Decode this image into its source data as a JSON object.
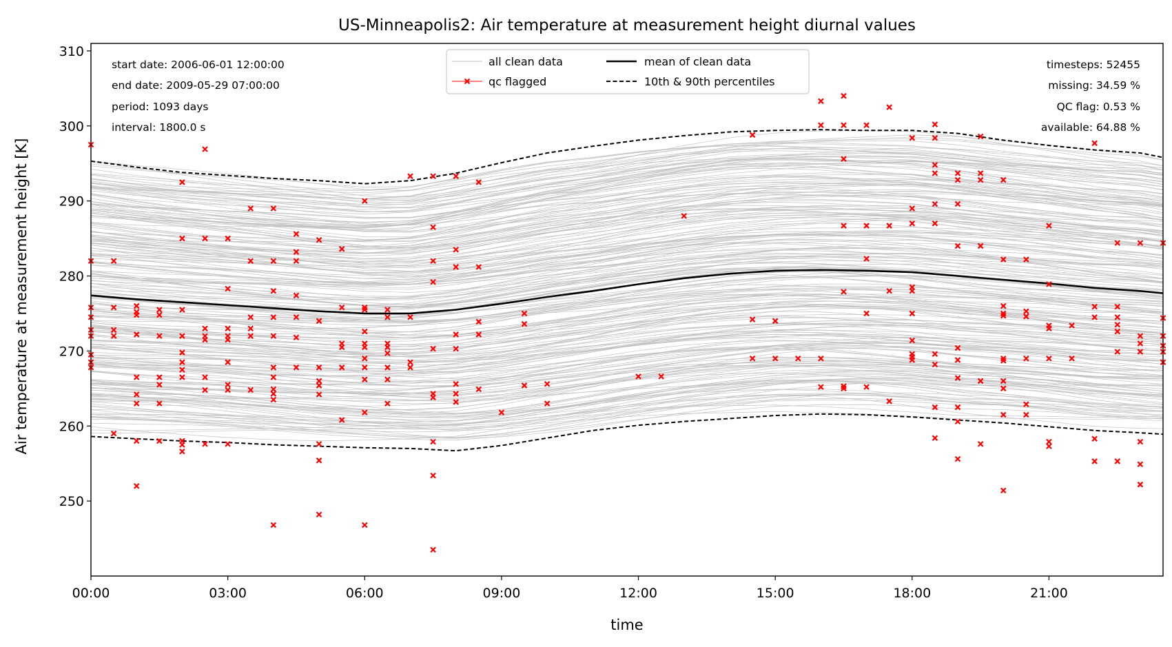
{
  "chart_data": {
    "type": "line",
    "title": "US-Minneapolis2: Air temperature at measurement height diurnal values",
    "xlabel": "time",
    "ylabel": "Air temperature at measurement height [K]",
    "xlim": [
      0,
      23.5
    ],
    "ylim": [
      240,
      311
    ],
    "x_ticks": [
      "00:00",
      "03:00",
      "06:00",
      "09:00",
      "12:00",
      "15:00",
      "18:00",
      "21:00"
    ],
    "y_ticks": [
      250,
      260,
      270,
      280,
      290,
      300,
      310
    ],
    "grid": false,
    "legend_position": "top-center",
    "legend": {
      "all_clean": "all clean data",
      "qc": "qc flagged",
      "mean": "mean of clean data",
      "percentiles": "10th & 90th percentiles"
    },
    "stats_left": [
      "start date: 2006-06-01 12:00:00",
      "end date: 2009-05-29 07:00:00",
      "period: 1093 days",
      "interval: 1800.0 s"
    ],
    "stats_right": [
      "timesteps: 52455",
      "missing: 34.59 %",
      "QC flag: 0.53 %",
      "available: 64.88 %"
    ],
    "colors": {
      "clean": "#bfbfbf",
      "qc": "#ff0000",
      "mean": "#000000"
    },
    "series": [
      {
        "name": "mean of clean data",
        "x": [
          0,
          1,
          2,
          3,
          4,
          5,
          6,
          7,
          8,
          9,
          10,
          11,
          12,
          13,
          14,
          15,
          16,
          17,
          18,
          19,
          20,
          21,
          22,
          23,
          23.5
        ],
        "values": [
          277.4,
          276.9,
          276.5,
          276.1,
          275.7,
          275.3,
          275.0,
          275.0,
          275.5,
          276.3,
          277.2,
          278.0,
          278.9,
          279.7,
          280.3,
          280.7,
          280.8,
          280.7,
          280.5,
          280.0,
          279.5,
          279.0,
          278.4,
          278.0,
          277.7
        ]
      },
      {
        "name": "10th & 90th percentiles",
        "x": [
          0,
          1,
          2,
          3,
          4,
          5,
          6,
          7,
          8,
          9,
          10,
          11,
          12,
          13,
          14,
          15,
          16,
          17,
          18,
          19,
          20,
          21,
          22,
          23,
          23.5
        ],
        "p90": [
          295.3,
          294.5,
          293.8,
          293.4,
          293.0,
          292.7,
          292.3,
          292.7,
          293.7,
          295.1,
          296.4,
          297.3,
          298.1,
          298.7,
          299.2,
          299.4,
          299.5,
          299.4,
          299.4,
          299.0,
          298.1,
          297.4,
          296.8,
          296.4,
          295.8
        ],
        "p10": [
          258.6,
          258.3,
          258.0,
          257.8,
          257.5,
          257.3,
          257.1,
          257.0,
          256.7,
          257.4,
          258.4,
          259.4,
          260.1,
          260.6,
          261.0,
          261.4,
          261.6,
          261.5,
          261.2,
          260.8,
          260.4,
          259.9,
          259.4,
          259.1,
          258.9
        ]
      },
      {
        "name": "qc flagged",
        "points": [
          [
            0,
            297.5
          ],
          [
            0,
            282
          ],
          [
            0.5,
            282
          ],
          [
            0,
            275.8
          ],
          [
            0.5,
            275.8
          ],
          [
            0,
            274.5
          ],
          [
            0,
            272.8
          ],
          [
            0.5,
            272.8
          ],
          [
            0,
            272
          ],
          [
            0.5,
            272
          ],
          [
            0,
            269.5
          ],
          [
            0,
            268.5
          ],
          [
            0,
            267.8
          ],
          [
            0.5,
            259
          ],
          [
            1,
            276
          ],
          [
            1.5,
            275.5
          ],
          [
            2,
            275.5
          ],
          [
            1,
            275.2
          ],
          [
            1,
            274.8
          ],
          [
            1.5,
            274.8
          ],
          [
            1,
            272.2
          ],
          [
            1.5,
            272
          ],
          [
            1,
            266.5
          ],
          [
            1.5,
            266.5
          ],
          [
            2,
            266.5
          ],
          [
            1,
            264.2
          ],
          [
            1,
            263
          ],
          [
            1.5,
            263
          ],
          [
            1.5,
            265.5
          ],
          [
            1,
            258
          ],
          [
            1.5,
            258
          ],
          [
            2,
            258
          ],
          [
            1,
            252
          ],
          [
            2,
            292.5
          ],
          [
            2,
            285
          ],
          [
            2.5,
            285
          ],
          [
            3,
            285
          ],
          [
            2.5,
            296.9
          ],
          [
            2,
            272
          ],
          [
            2.5,
            272
          ],
          [
            3,
            272
          ],
          [
            2,
            269.8
          ],
          [
            2,
            268.5
          ],
          [
            2,
            267.5
          ],
          [
            2.5,
            266.5
          ],
          [
            2,
            258
          ],
          [
            2,
            257.5
          ],
          [
            2,
            256.6
          ],
          [
            2.5,
            257.6
          ],
          [
            3,
            257.6
          ],
          [
            2.5,
            273
          ],
          [
            3,
            273
          ],
          [
            2.5,
            271.5
          ],
          [
            3,
            271.5
          ],
          [
            2.5,
            264.8
          ],
          [
            3,
            264.8
          ],
          [
            3,
            265.5
          ],
          [
            3,
            268.5
          ],
          [
            3,
            278.3
          ],
          [
            3.5,
            289
          ],
          [
            4,
            289
          ],
          [
            3.5,
            282
          ],
          [
            4,
            282
          ],
          [
            4.5,
            282
          ],
          [
            4.5,
            283.2
          ],
          [
            4.5,
            285.6
          ],
          [
            4,
            278
          ],
          [
            4.5,
            277.4
          ],
          [
            3.5,
            274.5
          ],
          [
            4,
            274.5
          ],
          [
            4.5,
            274.5
          ],
          [
            3.5,
            273
          ],
          [
            3.5,
            272
          ],
          [
            4,
            272
          ],
          [
            4.5,
            271.8
          ],
          [
            3.5,
            264.8
          ],
          [
            4,
            264.9
          ],
          [
            4,
            264.3
          ],
          [
            4,
            263.5
          ],
          [
            4,
            266.5
          ],
          [
            4,
            267.8
          ],
          [
            4.5,
            267.8
          ],
          [
            5,
            267.8
          ],
          [
            4,
            246.8
          ],
          [
            5,
            284.8
          ],
          [
            5,
            274
          ],
          [
            5,
            266
          ],
          [
            5,
            265.4
          ],
          [
            5,
            264.2
          ],
          [
            5,
            257.6
          ],
          [
            5,
            255.4
          ],
          [
            5,
            248.2
          ],
          [
            5.5,
            283.6
          ],
          [
            5.5,
            275.8
          ],
          [
            6,
            275.8
          ],
          [
            6,
            275.5
          ],
          [
            5.5,
            271
          ],
          [
            6,
            271
          ],
          [
            6.5,
            271
          ],
          [
            5.5,
            270.5
          ],
          [
            6,
            270.5
          ],
          [
            6.5,
            270.5
          ],
          [
            5.5,
            267.8
          ],
          [
            6,
            267.8
          ],
          [
            6.5,
            267.8
          ],
          [
            7,
            267.8
          ],
          [
            5.5,
            260.8
          ],
          [
            6,
            290
          ],
          [
            6,
            272.6
          ],
          [
            6,
            269
          ],
          [
            6,
            266.2
          ],
          [
            6.5,
            266.2
          ],
          [
            6,
            261.8
          ],
          [
            6,
            246.8
          ],
          [
            6.5,
            275.5
          ],
          [
            6.5,
            274.5
          ],
          [
            7,
            274.5
          ],
          [
            6.5,
            269.7
          ],
          [
            6.5,
            263
          ],
          [
            7,
            268.5
          ],
          [
            7,
            293.3
          ],
          [
            7.5,
            293.3
          ],
          [
            8,
            293.3
          ],
          [
            7.5,
            286.5
          ],
          [
            7.5,
            282
          ],
          [
            7.5,
            279.2
          ],
          [
            7.5,
            270.3
          ],
          [
            8,
            270.3
          ],
          [
            7.5,
            264.3
          ],
          [
            8,
            264.3
          ],
          [
            7.5,
            263.8
          ],
          [
            7.5,
            257.9
          ],
          [
            7.5,
            253.4
          ],
          [
            7.5,
            243.5
          ],
          [
            8,
            283.5
          ],
          [
            8,
            281.2
          ],
          [
            8,
            272.2
          ],
          [
            8.5,
            272.2
          ],
          [
            8,
            265.6
          ],
          [
            8,
            263.2
          ],
          [
            8.5,
            292.5
          ],
          [
            8.5,
            281.2
          ],
          [
            8.5,
            273.9
          ],
          [
            8.5,
            264.9
          ],
          [
            9,
            261.8
          ],
          [
            9.5,
            275
          ],
          [
            9.5,
            273.6
          ],
          [
            9.5,
            265.4
          ],
          [
            10,
            265.6
          ],
          [
            10,
            263
          ],
          [
            12,
            266.6
          ],
          [
            12.5,
            266.6
          ],
          [
            13,
            288
          ],
          [
            14.5,
            298.8
          ],
          [
            14.5,
            274.2
          ],
          [
            15,
            274
          ],
          [
            14.5,
            269
          ],
          [
            15,
            269
          ],
          [
            15.5,
            269
          ],
          [
            16,
            269
          ],
          [
            16,
            303.3
          ],
          [
            16.5,
            304
          ],
          [
            16,
            300.1
          ],
          [
            16.5,
            300.1
          ],
          [
            17,
            300.1
          ],
          [
            16.5,
            295.6
          ],
          [
            16.5,
            286.7
          ],
          [
            17,
            286.7
          ],
          [
            17.5,
            286.7
          ],
          [
            16.5,
            277.9
          ],
          [
            17,
            275
          ],
          [
            16,
            265.2
          ],
          [
            16.5,
            265.3
          ],
          [
            17,
            265.2
          ],
          [
            16.5,
            265
          ],
          [
            17.5,
            302.5
          ],
          [
            17,
            282.3
          ],
          [
            17.5,
            278
          ],
          [
            18,
            278
          ],
          [
            17.5,
            263.3
          ],
          [
            18,
            298.4
          ],
          [
            18.5,
            298.4
          ],
          [
            18.5,
            300.2
          ],
          [
            18,
            289
          ],
          [
            18,
            287
          ],
          [
            18.5,
            287
          ],
          [
            18,
            278.5
          ],
          [
            18,
            275
          ],
          [
            18,
            271.4
          ],
          [
            18,
            269.6
          ],
          [
            18.5,
            269.6
          ],
          [
            18,
            269.2
          ],
          [
            18,
            268.8
          ],
          [
            18.5,
            268.2
          ],
          [
            18.5,
            294.8
          ],
          [
            18.5,
            293.7
          ],
          [
            19,
            293.7
          ],
          [
            19.5,
            293.7
          ],
          [
            19,
            292.8
          ],
          [
            19.5,
            292.8
          ],
          [
            20,
            292.8
          ],
          [
            18.5,
            289.6
          ],
          [
            19,
            289.6
          ],
          [
            18.5,
            262.5
          ],
          [
            19,
            262.5
          ],
          [
            18.5,
            258.4
          ],
          [
            19,
            284
          ],
          [
            19.5,
            284
          ],
          [
            19,
            270.4
          ],
          [
            19,
            268.8
          ],
          [
            19,
            266.4
          ],
          [
            19,
            260.6
          ],
          [
            19,
            255.6
          ],
          [
            19.5,
            298.6
          ],
          [
            19.5,
            266
          ],
          [
            20,
            266
          ],
          [
            19.5,
            257.6
          ],
          [
            20,
            282.2
          ],
          [
            20.5,
            282.2
          ],
          [
            20,
            276
          ],
          [
            20,
            275
          ],
          [
            20,
            274.7
          ],
          [
            20,
            269
          ],
          [
            20.5,
            269
          ],
          [
            21,
            269
          ],
          [
            21.5,
            269
          ],
          [
            20,
            268.7
          ],
          [
            20,
            265
          ],
          [
            20,
            261.5
          ],
          [
            20.5,
            261.5
          ],
          [
            20.5,
            262.9
          ],
          [
            20,
            251.4
          ],
          [
            20.5,
            275.3
          ],
          [
            20.5,
            274.6
          ],
          [
            21,
            286.7
          ],
          [
            21,
            278.9
          ],
          [
            21,
            273.4
          ],
          [
            21.5,
            273.4
          ],
          [
            21,
            273
          ],
          [
            21,
            257.9
          ],
          [
            21,
            257.3
          ],
          [
            22,
            297.7
          ],
          [
            22,
            275.9
          ],
          [
            22.5,
            275.9
          ],
          [
            22,
            274.5
          ],
          [
            22.5,
            274.5
          ],
          [
            22.5,
            273.5
          ],
          [
            22.5,
            272.6
          ],
          [
            22,
            258.3
          ],
          [
            22,
            255.3
          ],
          [
            22.5,
            255.3
          ],
          [
            22.5,
            284.4
          ],
          [
            23,
            284.4
          ],
          [
            23.5,
            284.4
          ],
          [
            22.5,
            269.9
          ],
          [
            23,
            269.9
          ],
          [
            23.5,
            269.9
          ],
          [
            23,
            272
          ],
          [
            23.5,
            272
          ],
          [
            23,
            271
          ],
          [
            23,
            257.9
          ],
          [
            23,
            254.9
          ],
          [
            23,
            252.2
          ],
          [
            23.5,
            274.4
          ],
          [
            23.5,
            270.7
          ],
          [
            23.5,
            268.5
          ]
        ]
      }
    ]
  }
}
